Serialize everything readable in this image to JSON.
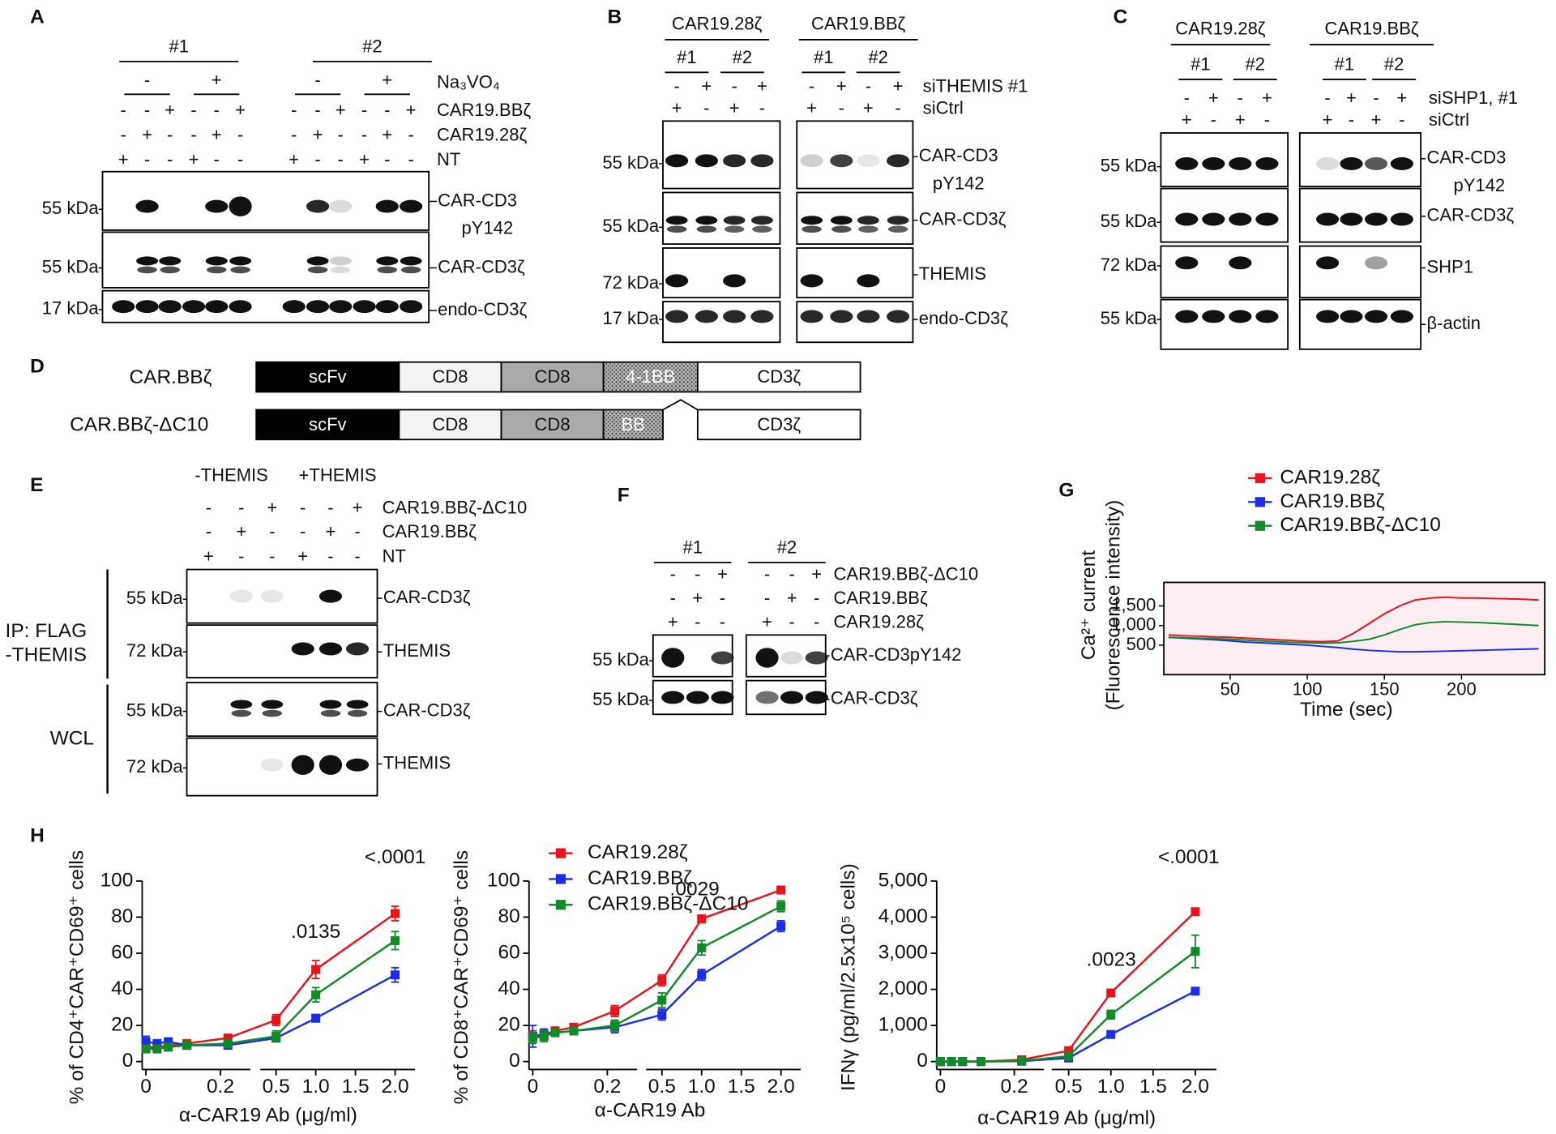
{
  "panels": {
    "A": {
      "label": "A",
      "groups": [
        "#1",
        "#2"
      ],
      "treatment": {
        "name": "Na₃VO₄",
        "signs": [
          "-",
          "+",
          "-",
          "+"
        ]
      },
      "rows": [
        {
          "name": "CAR19.BBζ",
          "signs": [
            "-",
            "-",
            "+",
            "-",
            "-",
            "+",
            "-",
            "-",
            "+",
            "-",
            "-",
            "+"
          ]
        },
        {
          "name": "CAR19.28ζ",
          "signs": [
            "-",
            "+",
            "-",
            "-",
            "+",
            "-",
            "-",
            "+",
            "-",
            "-",
            "+",
            "-"
          ]
        },
        {
          "name": "NT",
          "signs": [
            "+",
            "-",
            "-",
            "+",
            "-",
            "-",
            "+",
            "-",
            "-",
            "+",
            "-",
            "-"
          ]
        }
      ],
      "blots": [
        {
          "kda": "55 kDa",
          "labels": [
            "CAR-CD3",
            "pY142"
          ]
        },
        {
          "kda": "55 kDa",
          "labels": [
            "CAR-CD3ζ"
          ]
        },
        {
          "kda": "17 kDa",
          "labels": [
            "endo-CD3ζ"
          ]
        }
      ]
    },
    "B": {
      "label": "B",
      "constructs": [
        "CAR19.28ζ",
        "CAR19.BBζ"
      ],
      "groups": [
        "#1",
        "#2",
        "#1",
        "#2"
      ],
      "rows": [
        {
          "name": "siTHEMIS #1",
          "signs": [
            "-",
            "+",
            "-",
            "+",
            "-",
            "+",
            "-",
            "+"
          ]
        },
        {
          "name": "siCtrl",
          "signs": [
            "+",
            "-",
            "+",
            "-",
            "+",
            "-",
            "+",
            "-"
          ]
        }
      ],
      "blots": [
        {
          "kda": "55 kDa",
          "labels": [
            "CAR-CD3",
            "pY142"
          ]
        },
        {
          "kda": "55 kDa",
          "labels": [
            "CAR-CD3ζ"
          ]
        },
        {
          "kda": "72 kDa",
          "labels": [
            "THEMIS"
          ]
        },
        {
          "kda": "17 kDa",
          "labels": [
            "endo-CD3ζ"
          ]
        }
      ]
    },
    "C": {
      "label": "C",
      "constructs": [
        "CAR19.28ζ",
        "CAR19.BBζ"
      ],
      "groups": [
        "#1",
        "#2",
        "#1",
        "#2"
      ],
      "rows": [
        {
          "name": "siSHP1, #1",
          "signs": [
            "-",
            "+",
            "-",
            "+",
            "-",
            "+",
            "-",
            "+"
          ]
        },
        {
          "name": "siCtrl",
          "signs": [
            "+",
            "-",
            "+",
            "-",
            "+",
            "-",
            "+",
            "-"
          ]
        }
      ],
      "blots": [
        {
          "kda": "55 kDa",
          "labels": [
            "CAR-CD3",
            "pY142"
          ]
        },
        {
          "kda": "55 kDa",
          "labels": [
            "CAR-CD3ζ"
          ]
        },
        {
          "kda": "72 kDa",
          "labels": [
            "SHP1"
          ]
        },
        {
          "kda": "55 kDa",
          "labels": [
            "β-actin"
          ]
        }
      ]
    },
    "D": {
      "label": "D",
      "constructs": [
        {
          "name": "CAR.BBζ",
          "domains": [
            "scFv",
            "CD8",
            "CD8",
            "4-1BB",
            "CD3ζ"
          ]
        },
        {
          "name": "CAR.BBζ-ΔC10",
          "domains": [
            "scFv",
            "CD8",
            "CD8",
            "BB",
            "CD3ζ"
          ]
        }
      ]
    },
    "E": {
      "label": "E",
      "groups": [
        "-THEMIS",
        "+THEMIS"
      ],
      "rows": [
        {
          "name": "CAR19.BBζ-ΔC10",
          "signs": [
            "-",
            "-",
            "+",
            "-",
            "-",
            "+"
          ]
        },
        {
          "name": "CAR19.BBζ",
          "signs": [
            "-",
            "+",
            "-",
            "-",
            "+",
            "-"
          ]
        },
        {
          "name": "NT",
          "signs": [
            "+",
            "-",
            "-",
            "+",
            "-",
            "-"
          ]
        }
      ],
      "side_labels": [
        "IP: FLAG",
        "-THEMIS",
        "WCL"
      ],
      "blots": [
        {
          "kda": "55 kDa",
          "labels": [
            "CAR-CD3ζ"
          ]
        },
        {
          "kda": "72 kDa",
          "labels": [
            "THEMIS"
          ]
        },
        {
          "kda": "55 kDa",
          "labels": [
            "CAR-CD3ζ"
          ]
        },
        {
          "kda": "72 kDa",
          "labels": [
            "THEMIS"
          ]
        }
      ]
    },
    "F": {
      "label": "F",
      "groups": [
        "#1",
        "#2"
      ],
      "rows": [
        {
          "name": "CAR19.BBζ-ΔC10",
          "signs": [
            "-",
            "-",
            "+",
            "-",
            "-",
            "+"
          ]
        },
        {
          "name": "CAR19.BBζ",
          "signs": [
            "-",
            "+",
            "-",
            "-",
            "+",
            "-"
          ]
        },
        {
          "name": "CAR19.28ζ",
          "signs": [
            "+",
            "-",
            "-",
            "+",
            "-",
            "-"
          ]
        }
      ],
      "blots": [
        {
          "kda": "55 kDa",
          "labels": [
            "CAR-CD3pY142"
          ]
        },
        {
          "kda": "55 kDa",
          "labels": [
            "CAR-CD3ζ"
          ]
        }
      ]
    },
    "G": {
      "label": "G"
    },
    "H": {
      "label": "H"
    }
  },
  "chart_data": [
    {
      "type": "line",
      "y_label": [
        "Ca²⁺ current",
        "(Fluorescence intensity)"
      ],
      "x_label": "Time (sec)",
      "x": [
        10,
        20,
        30,
        40,
        50,
        60,
        70,
        80,
        90,
        100,
        110,
        120,
        130,
        140,
        150,
        160,
        170,
        180,
        190,
        200,
        210,
        220,
        230,
        240,
        250
      ],
      "xlim": [
        7,
        254
      ],
      "xticks": [
        50,
        100,
        150,
        200
      ],
      "ylim": [
        -250,
        2100
      ],
      "yticks": [
        500,
        {
          "value": 1000,
          "label": "1,000"
        },
        {
          "value": 1500,
          "label": "1,500"
        }
      ],
      "plot_background": "#fbeef3",
      "series": [
        {
          "name": "CAR19.28ζ",
          "color": "#e8131b",
          "values": [
            760,
            740,
            730,
            710,
            700,
            680,
            660,
            640,
            620,
            600,
            590,
            610,
            800,
            1050,
            1300,
            1500,
            1650,
            1700,
            1720,
            1700,
            1700,
            1690,
            1680,
            1670,
            1650
          ]
        },
        {
          "name": "CAR19.BBζ",
          "color": "#1b2ee6",
          "values": [
            700,
            680,
            660,
            640,
            610,
            580,
            560,
            540,
            520,
            500,
            470,
            440,
            400,
            370,
            350,
            330,
            330,
            340,
            350,
            360,
            370,
            380,
            390,
            400,
            410
          ]
        },
        {
          "name": "CAR19.BBζ-ΔC10",
          "color": "#138a2a",
          "values": [
            700,
            690,
            680,
            670,
            650,
            630,
            610,
            590,
            570,
            560,
            550,
            560,
            600,
            650,
            760,
            900,
            1020,
            1080,
            1100,
            1090,
            1080,
            1060,
            1040,
            1020,
            1000
          ]
        }
      ]
    },
    {
      "type": "line",
      "y_label": "% of CD4⁺CAR⁺CD69⁺ cells",
      "x_label": "α-CAR19 Ab (μg/ml)",
      "x": [
        0,
        0.03,
        0.06,
        0.11,
        0.22,
        0.5,
        1,
        2
      ],
      "x_segments": [
        {
          "xlim": [
            -0.01,
            0.28
          ],
          "xticks": [
            0,
            0.2
          ]
        },
        {
          "xlim": [
            0.3,
            2.25
          ],
          "xticks": [
            0.5,
            {
              "value": 1,
              "label": "1.0"
            },
            1.5,
            {
              "value": 2,
              "label": "2.0"
            }
          ]
        }
      ],
      "ylim": [
        0,
        100
      ],
      "yticks": [
        0,
        20,
        40,
        60,
        80,
        100
      ],
      "annotations": [
        ".0135",
        "<.0001"
      ],
      "series": [
        {
          "color": "#e8131b",
          "values": [
            8,
            8,
            9,
            10,
            13,
            23,
            51,
            82
          ],
          "errors": [
            2,
            2,
            2,
            2,
            2,
            3,
            5,
            4
          ]
        },
        {
          "color": "#1b2ee6",
          "values": [
            11,
            10,
            11,
            9,
            9,
            13,
            24,
            48
          ],
          "errors": [
            3,
            2,
            2,
            2,
            2,
            2,
            2,
            4
          ]
        },
        {
          "color": "#138a2a",
          "values": [
            7,
            7,
            8,
            9,
            10,
            14,
            37,
            67
          ],
          "errors": [
            2,
            2,
            2,
            2,
            2,
            3,
            4,
            5
          ]
        }
      ]
    },
    {
      "type": "line",
      "y_label": "% of CD8⁺CAR⁺CD69⁺ cells",
      "x_label": "α-CAR19 Ab",
      "x": [
        0,
        0.03,
        0.06,
        0.11,
        0.22,
        0.5,
        1,
        2
      ],
      "x_segments": [
        {
          "xlim": [
            -0.01,
            0.28
          ],
          "xticks": [
            0,
            0.2
          ]
        },
        {
          "xlim": [
            0.3,
            2.25
          ],
          "xticks": [
            0.5,
            {
              "value": 1,
              "label": "1.0"
            },
            1.5,
            {
              "value": 2,
              "label": "2.0"
            }
          ]
        }
      ],
      "ylim": [
        0,
        100
      ],
      "yticks": [
        0,
        20,
        40,
        60,
        80,
        100
      ],
      "annotations": [
        ".0029"
      ],
      "series": [
        {
          "name": "CAR19.28ζ",
          "color": "#e8131b",
          "values": [
            14,
            15,
            17,
            19,
            28,
            45,
            79,
            95
          ],
          "errors": [
            3,
            3,
            2,
            2,
            3,
            3,
            2,
            1
          ]
        },
        {
          "name": "CAR19.BBζ",
          "color": "#1b2ee6",
          "values": [
            14,
            15,
            16,
            17,
            19,
            26,
            48,
            75
          ],
          "errors": [
            6,
            3,
            2,
            2,
            3,
            3,
            3,
            3
          ]
        },
        {
          "name": "CAR19.BBζ-ΔC10",
          "color": "#138a2a",
          "values": [
            13,
            14,
            16,
            17,
            20,
            34,
            63,
            86
          ],
          "errors": [
            3,
            3,
            2,
            2,
            3,
            4,
            4,
            3
          ]
        }
      ]
    },
    {
      "type": "line",
      "y_label": "IFNγ (pg/ml/2.5x10⁵ cells)",
      "x_label": "α-CAR19 Ab (μg/ml)",
      "x": [
        0,
        0.03,
        0.06,
        0.11,
        0.22,
        0.5,
        1,
        2
      ],
      "x_segments": [
        {
          "xlim": [
            -0.01,
            0.28
          ],
          "xticks": [
            0,
            0.2
          ]
        },
        {
          "xlim": [
            0.3,
            2.25
          ],
          "xticks": [
            0.5,
            {
              "value": 1,
              "label": "1.0"
            },
            1.5,
            {
              "value": 2,
              "label": "2.0"
            }
          ]
        }
      ],
      "ylim": [
        0,
        5000
      ],
      "yticks": [
        0,
        {
          "value": 1000,
          "label": "1,000"
        },
        {
          "value": 2000,
          "label": "2,000"
        },
        {
          "value": 3000,
          "label": "3,000"
        },
        {
          "value": 4000,
          "label": "4,000"
        },
        {
          "value": 5000,
          "label": "5,000"
        }
      ],
      "annotations": [
        ".0023",
        "<.0001"
      ],
      "series": [
        {
          "color": "#e8131b",
          "values": [
            0,
            0,
            0,
            0,
            50,
            300,
            1900,
            4150
          ],
          "errors": [
            0,
            0,
            0,
            0,
            0,
            50,
            80,
            60
          ]
        },
        {
          "color": "#1b2ee6",
          "values": [
            0,
            0,
            0,
            0,
            10,
            100,
            750,
            1950
          ],
          "errors": [
            0,
            0,
            0,
            0,
            0,
            20,
            40,
            50
          ]
        },
        {
          "color": "#138a2a",
          "values": [
            0,
            0,
            0,
            0,
            20,
            150,
            1300,
            3050
          ],
          "errors": [
            0,
            0,
            0,
            0,
            0,
            30,
            120,
            450
          ]
        }
      ]
    }
  ]
}
